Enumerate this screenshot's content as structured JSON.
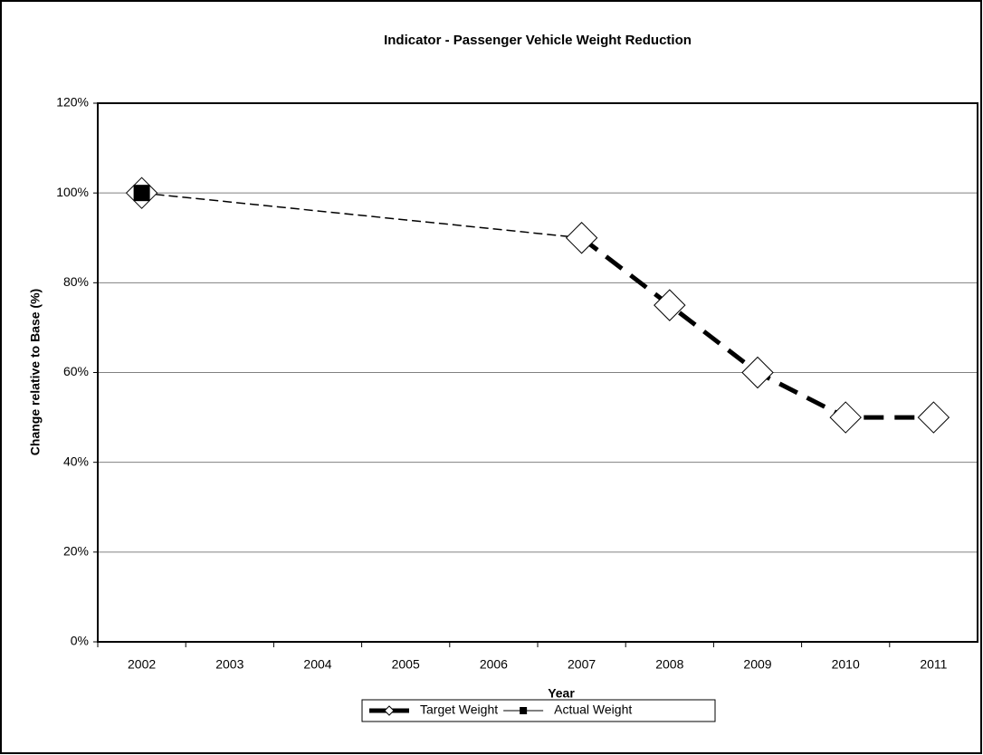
{
  "chart_data": {
    "type": "line",
    "title": "Indicator - Passenger Vehicle Weight Reduction",
    "xlabel": "Year",
    "ylabel": "Change relative to Base (%)",
    "categories": [
      "2002",
      "2003",
      "2004",
      "2005",
      "2006",
      "2007",
      "2008",
      "2009",
      "2010",
      "2011"
    ],
    "series": [
      {
        "name": "Target Weight",
        "color": "#000000",
        "marker": "diamond",
        "connect_gaps": true,
        "values": [
          100,
          null,
          null,
          null,
          null,
          90,
          75,
          60,
          50,
          50
        ]
      },
      {
        "name": "Actual Weight",
        "color": "#000000",
        "marker": "square",
        "values": [
          100,
          null,
          null,
          null,
          null,
          null,
          null,
          null,
          null,
          null
        ]
      }
    ],
    "ylim": [
      0,
      120
    ],
    "yticks": [
      {
        "value": 0,
        "label": "0%"
      },
      {
        "value": 20,
        "label": "20%"
      },
      {
        "value": 40,
        "label": "40%"
      },
      {
        "value": 60,
        "label": "60%"
      },
      {
        "value": 80,
        "label": "80%"
      },
      {
        "value": 100,
        "label": "100%"
      },
      {
        "value": 120,
        "label": "120%"
      }
    ],
    "grid": true,
    "legend": "bottom"
  }
}
